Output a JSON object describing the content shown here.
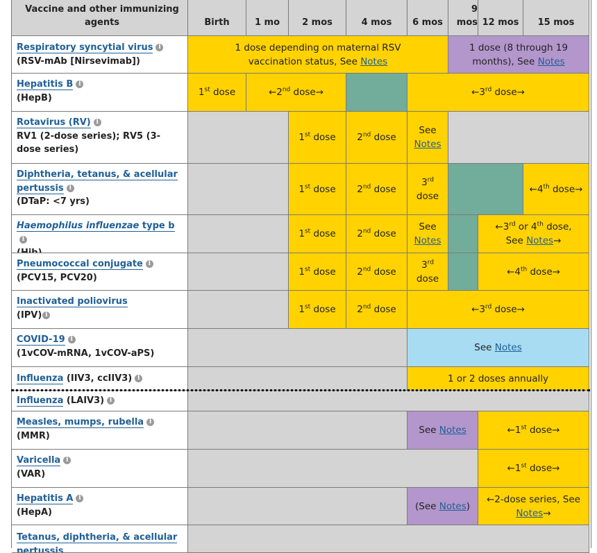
{
  "header": {
    "vaccine_col": "Vaccine and other immunizing agents",
    "ages": [
      "Birth",
      "1 mo",
      "2 mos",
      "4 mos",
      "6 mos",
      "9 mos",
      "12 mos",
      "15 mos"
    ],
    "nine_top": "9",
    "nine_bottom": "mos"
  },
  "common": {
    "notes": "Notes",
    "see": "See",
    "dose": "dose",
    "st": "st",
    "nd": "nd",
    "rd": "rd",
    "th": "th",
    "first_dose": "1st dose",
    "second_dose": "2nd dose"
  },
  "rows": {
    "rsv": {
      "name": "Respiratory syncytial virus",
      "sub": "(RSV-mAb [Nirsevimab])",
      "cell1": "1 dose depending on maternal RSV vaccination status, See",
      "cell2": "1 dose (8 through 19 months), See"
    },
    "hepb": {
      "name": "Hepatitis B",
      "sub": "(HepB)",
      "d1": "1",
      "d2_pre": "←2",
      "d2_post": " dose→",
      "d3_pre": "←3",
      "d3_post": " dose→"
    },
    "rv": {
      "name": "Rotavirus (RV)",
      "sub": "RV1 (2-dose series); RV5 (3-dose series)"
    },
    "dtap": {
      "name": "Diphtheria, tetanus, & acellular pertussis",
      "sub": "(DTaP: <7 yrs)",
      "d3": "3",
      "d4_pre": "←4",
      "d4_post": " dose→"
    },
    "hib": {
      "name_italic": "Haemophilus influenzae",
      "name_rest": " type b",
      "sub": "(Hib)",
      "d34_pre": "←3",
      "d34_mid": " or 4",
      "d34_post": " dose,",
      "d34_see": "See",
      "d34_arrow": "→"
    },
    "pcv": {
      "name": "Pneumococcal conjugate",
      "sub": "(PCV15, PCV20)",
      "d3": "3",
      "d4_pre": "←4",
      "d4_post": " dose→"
    },
    "ipv": {
      "name": "Inactivated poliovirus",
      "sub": "(IPV)",
      "d3_pre": "←3",
      "d3_post": " dose→"
    },
    "covid": {
      "name": "COVID-19",
      "sub": "(1vCOV-mRNA, 1vCOV-aPS)",
      "see": "See"
    },
    "flu1": {
      "name": "Influenza",
      "sub": " (IIV3, ccIIV3)",
      "text": "1 or 2 doses annually"
    },
    "flu2": {
      "name": "Influenza",
      "sub": " (LAIV3)"
    },
    "mmr": {
      "name": "Measles, mumps, rubella",
      "sub": "(MMR)",
      "d1_pre": "←1",
      "d1_post": " dose→"
    },
    "var": {
      "name": "Varicella",
      "sub": "(VAR)",
      "d1_pre": "←1",
      "d1_post": " dose→"
    },
    "hepa": {
      "name": "Hepatitis A",
      "sub": "(HepA)",
      "see_pre": "(See",
      "see_post": ")",
      "series": "←2-dose series, See",
      "arrow": "→"
    },
    "tdap": {
      "name": "Tetanus, diphtheria, & acellular pertussis"
    }
  },
  "info_glyph": "i",
  "colors": {
    "yellow": "#ffd200",
    "purple": "#b396cc",
    "green": "#71ad9a",
    "gray": "#d4d4d4",
    "blue": "#a8dcf3",
    "link": "#1f5f96"
  }
}
